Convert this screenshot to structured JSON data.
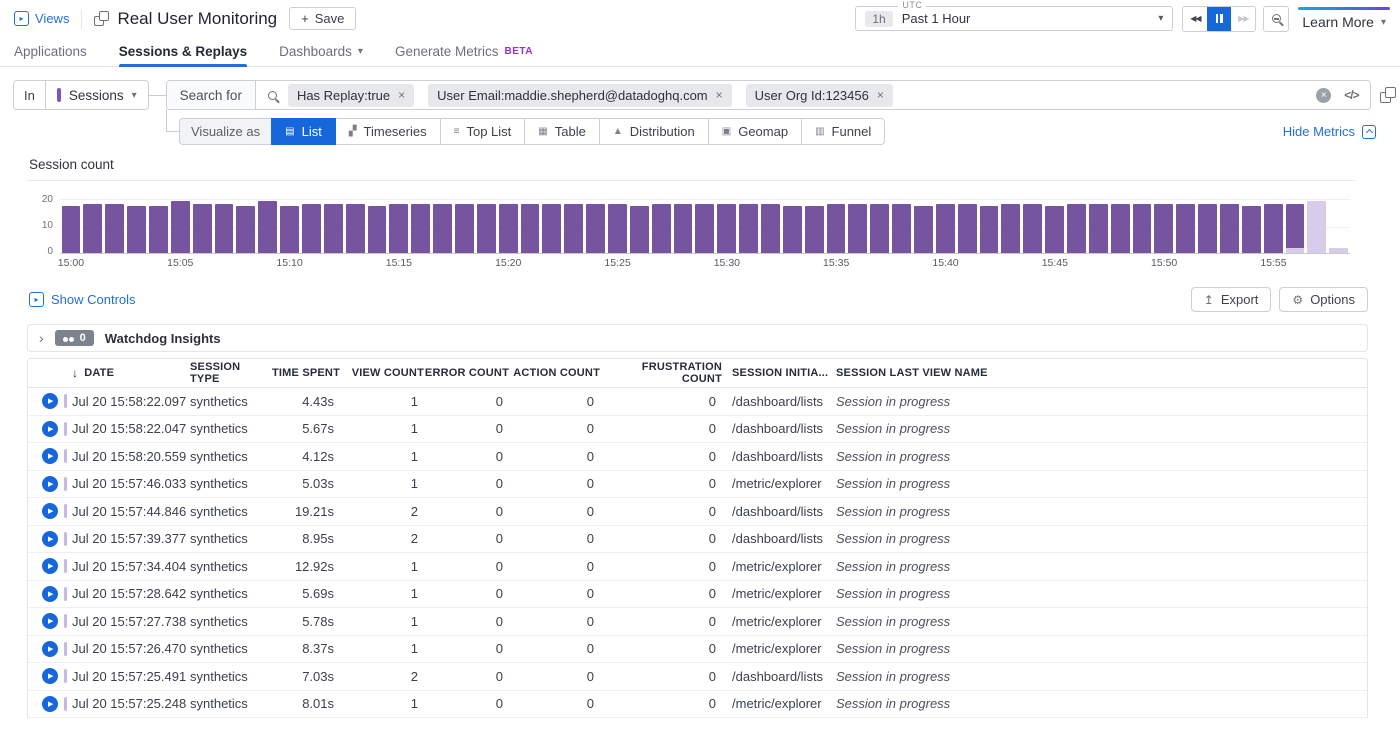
{
  "icons": {
    "caret_down": "▾",
    "chevron_right": "›",
    "sort_down": "↓",
    "plus": "+",
    "close": "×",
    "clear": "×",
    "code": "</>",
    "play": "▶",
    "rewind": "◀◀",
    "forward": "▶▶",
    "views": "▸",
    "show_controls": "▸",
    "export": "↥",
    "gear": "⚙"
  },
  "header": {
    "views_label": "Views",
    "app_title": "Real User Monitoring",
    "save_label": "Save",
    "time_range": {
      "badge": "1h",
      "label": "Past 1 Hour",
      "tz": "UTC"
    },
    "learn_more_label": "Learn More"
  },
  "tabs": [
    {
      "label": "Applications",
      "active": false
    },
    {
      "label": "Sessions & Replays",
      "active": true
    },
    {
      "label": "Dashboards",
      "active": false,
      "has_caret": true
    },
    {
      "label": "Generate Metrics",
      "active": false,
      "badge": "BETA"
    }
  ],
  "search": {
    "in_label": "In",
    "scope": "Sessions",
    "search_for_label": "Search for",
    "filters": [
      "Has Replay:true",
      "User Email:maddie.shepherd@datadoghq.com",
      "User Org Id:123456"
    ],
    "visualize_label": "Visualize as",
    "visualizations": [
      {
        "label": "List",
        "active": true
      },
      {
        "label": "Timeseries",
        "active": false
      },
      {
        "label": "Top List",
        "active": false
      },
      {
        "label": "Table",
        "active": false
      },
      {
        "label": "Distribution",
        "active": false
      },
      {
        "label": "Geomap",
        "active": false
      },
      {
        "label": "Funnel",
        "active": false
      }
    ],
    "hide_metrics_label": "Hide Metrics"
  },
  "chart_data": {
    "type": "bar",
    "title": "Session count",
    "xlabel": "",
    "ylabel": "",
    "ylim": [
      0,
      22
    ],
    "yticks": [
      0,
      10,
      20
    ],
    "x_interval": "1 minute",
    "x_tick_labels": [
      "15:00",
      "15:05",
      "15:10",
      "15:15",
      "15:20",
      "15:25",
      "15:30",
      "15:35",
      "15:40",
      "15:45",
      "15:50",
      "15:55"
    ],
    "values": [
      17,
      18,
      18,
      17,
      17,
      19,
      18,
      18,
      17,
      19,
      17,
      18,
      18,
      18,
      17,
      18,
      18,
      18,
      18,
      18,
      18,
      18,
      18,
      18,
      18,
      18,
      17,
      18,
      18,
      18,
      18,
      18,
      18,
      17,
      17,
      18,
      18,
      18,
      18,
      17,
      18,
      18,
      17,
      18,
      18,
      17,
      18,
      18,
      18,
      18,
      18,
      18,
      18,
      18,
      17,
      18,
      18,
      19,
      2
    ],
    "muted_from_index": 57,
    "partial_index": 56,
    "partial_muted_value": 2,
    "bar_color": "#76549f",
    "muted_color": "#d9cbea",
    "grid": true,
    "legend": false
  },
  "controls": {
    "show_controls_label": "Show Controls",
    "export_label": "Export",
    "options_label": "Options"
  },
  "watchdog": {
    "count": "0",
    "label": "Watchdog Insights"
  },
  "table": {
    "columns": [
      "DATE",
      "SESSION TYPE",
      "TIME SPENT",
      "VIEW COUNT",
      "ERROR COUNT",
      "ACTION COUNT",
      "FRUSTRATION COUNT",
      "SESSION INITIA...",
      "SESSION LAST VIEW NAME"
    ],
    "rows": [
      {
        "date": "Jul 20 15:58:22.097",
        "type": "synthetics",
        "time_spent": "4.43s",
        "view_count": "1",
        "error_count": "0",
        "action_count": "0",
        "frustration_count": "0",
        "initial_view": "/dashboard/lists",
        "last_view": "Session in progress"
      },
      {
        "date": "Jul 20 15:58:22.047",
        "type": "synthetics",
        "time_spent": "5.67s",
        "view_count": "1",
        "error_count": "0",
        "action_count": "0",
        "frustration_count": "0",
        "initial_view": "/dashboard/lists",
        "last_view": "Session in progress"
      },
      {
        "date": "Jul 20 15:58:20.559",
        "type": "synthetics",
        "time_spent": "4.12s",
        "view_count": "1",
        "error_count": "0",
        "action_count": "0",
        "frustration_count": "0",
        "initial_view": "/dashboard/lists",
        "last_view": "Session in progress"
      },
      {
        "date": "Jul 20 15:57:46.033",
        "type": "synthetics",
        "time_spent": "5.03s",
        "view_count": "1",
        "error_count": "0",
        "action_count": "0",
        "frustration_count": "0",
        "initial_view": "/metric/explorer",
        "last_view": "Session in progress"
      },
      {
        "date": "Jul 20 15:57:44.846",
        "type": "synthetics",
        "time_spent": "19.21s",
        "view_count": "2",
        "error_count": "0",
        "action_count": "0",
        "frustration_count": "0",
        "initial_view": "/dashboard/lists",
        "last_view": "Session in progress"
      },
      {
        "date": "Jul 20 15:57:39.377",
        "type": "synthetics",
        "time_spent": "8.95s",
        "view_count": "2",
        "error_count": "0",
        "action_count": "0",
        "frustration_count": "0",
        "initial_view": "/dashboard/lists",
        "last_view": "Session in progress"
      },
      {
        "date": "Jul 20 15:57:34.404",
        "type": "synthetics",
        "time_spent": "12.92s",
        "view_count": "1",
        "error_count": "0",
        "action_count": "0",
        "frustration_count": "0",
        "initial_view": "/metric/explorer",
        "last_view": "Session in progress"
      },
      {
        "date": "Jul 20 15:57:28.642",
        "type": "synthetics",
        "time_spent": "5.69s",
        "view_count": "1",
        "error_count": "0",
        "action_count": "0",
        "frustration_count": "0",
        "initial_view": "/metric/explorer",
        "last_view": "Session in progress"
      },
      {
        "date": "Jul 20 15:57:27.738",
        "type": "synthetics",
        "time_spent": "5.78s",
        "view_count": "1",
        "error_count": "0",
        "action_count": "0",
        "frustration_count": "0",
        "initial_view": "/metric/explorer",
        "last_view": "Session in progress"
      },
      {
        "date": "Jul 20 15:57:26.470",
        "type": "synthetics",
        "time_spent": "8.37s",
        "view_count": "1",
        "error_count": "0",
        "action_count": "0",
        "frustration_count": "0",
        "initial_view": "/metric/explorer",
        "last_view": "Session in progress"
      },
      {
        "date": "Jul 20 15:57:25.491",
        "type": "synthetics",
        "time_spent": "7.03s",
        "view_count": "2",
        "error_count": "0",
        "action_count": "0",
        "frustration_count": "0",
        "initial_view": "/dashboard/lists",
        "last_view": "Session in progress"
      },
      {
        "date": "Jul 20 15:57:25.248",
        "type": "synthetics",
        "time_spent": "8.01s",
        "view_count": "1",
        "error_count": "0",
        "action_count": "0",
        "frustration_count": "0",
        "initial_view": "/metric/explorer",
        "last_view": "Session in progress"
      }
    ]
  }
}
